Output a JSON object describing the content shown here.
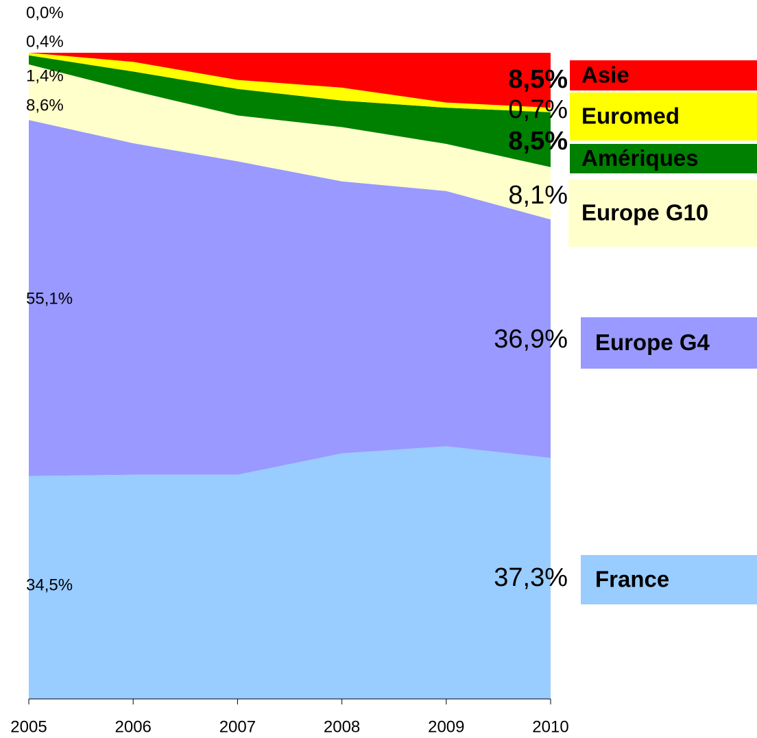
{
  "chart_data": {
    "type": "stacked_area",
    "categories": [
      "2005",
      "2006",
      "2007",
      "2008",
      "2009",
      "2010"
    ],
    "ylim": [
      0,
      100
    ],
    "series": [
      {
        "name": "France",
        "color": "#99ccff",
        "values": [
          34.5,
          34.7,
          34.7,
          38.0,
          39.1,
          37.3
        ],
        "value_labels": [
          "34,5%",
          null,
          null,
          null,
          null,
          "37,3%"
        ]
      },
      {
        "name": "Europe G4",
        "color": "#9999ff",
        "values": [
          55.1,
          51.3,
          48.5,
          42.1,
          39.5,
          36.9
        ],
        "value_labels": [
          "55,1%",
          null,
          null,
          null,
          null,
          "36,9%"
        ]
      },
      {
        "name": "Europe G10",
        "color": "#ffffcc",
        "values": [
          8.6,
          8.1,
          7.1,
          8.4,
          7.3,
          8.1
        ],
        "value_labels": [
          "8,6%",
          null,
          null,
          null,
          null,
          "8,1%"
        ]
      },
      {
        "name": "Amériques",
        "color": "#008000",
        "values": [
          1.4,
          3.0,
          4.1,
          4.1,
          5.6,
          8.5
        ],
        "value_labels": [
          "1,4%",
          null,
          null,
          null,
          null,
          "8,5%"
        ]
      },
      {
        "name": "Euromed",
        "color": "#ffff00",
        "values": [
          0.4,
          1.5,
          1.4,
          2.0,
          0.8,
          0.7
        ],
        "value_labels": [
          "0,4%",
          null,
          null,
          null,
          null,
          "0,7%"
        ]
      },
      {
        "name": "Asie",
        "color": "#ff0000",
        "values": [
          0.0,
          1.4,
          4.2,
          5.4,
          7.7,
          8.5
        ],
        "value_labels": [
          "0,0%",
          null,
          null,
          null,
          null,
          "8,5%"
        ]
      }
    ]
  }
}
